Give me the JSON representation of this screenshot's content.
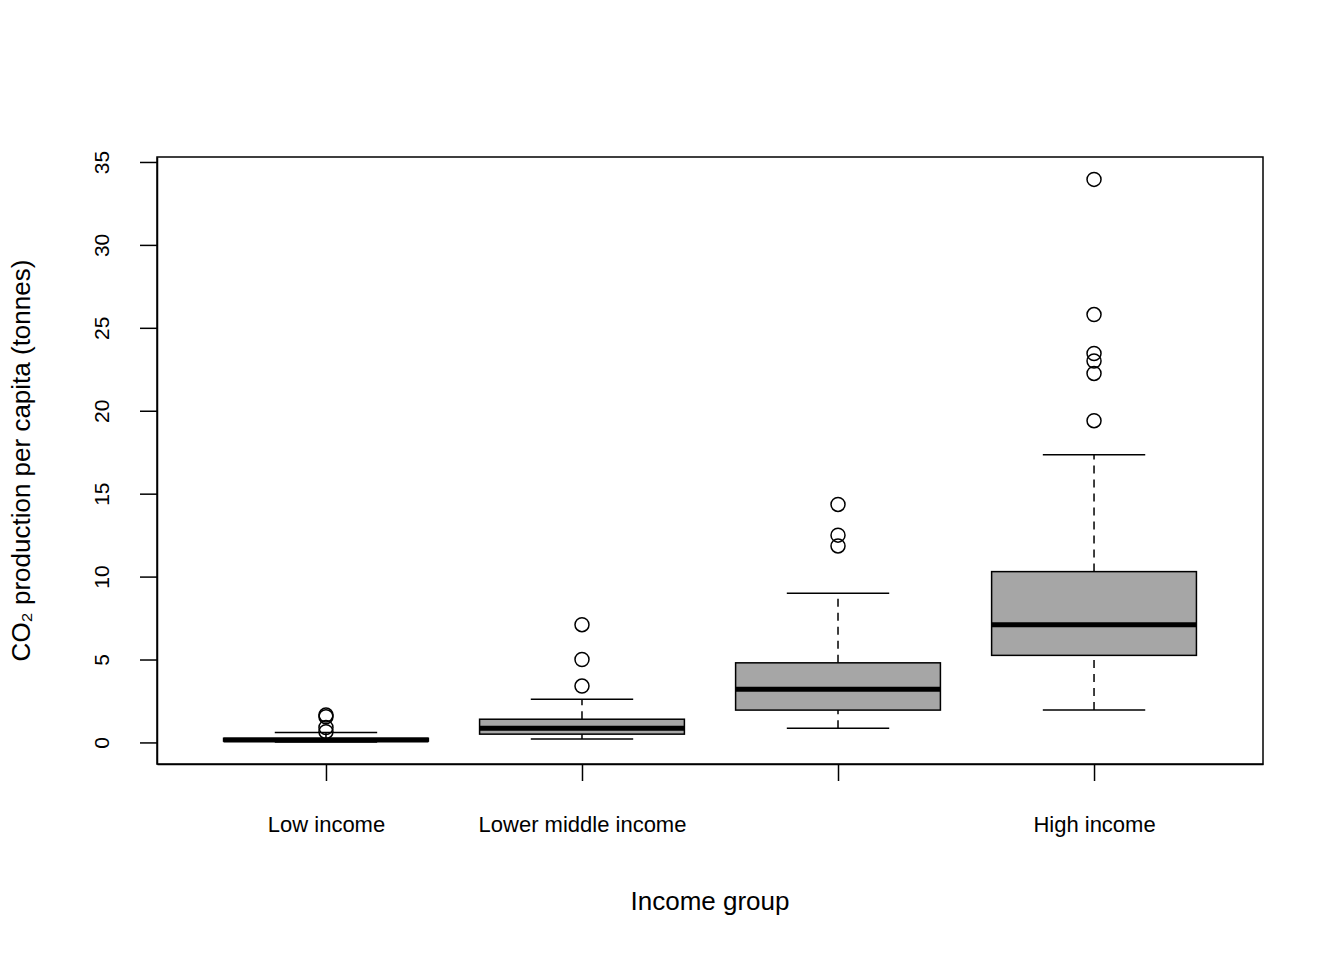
{
  "chart_data": {
    "type": "box",
    "x_label": "Income group",
    "y_label": "CO₂ production per capita (tonnes)",
    "categories": [
      "Low income",
      "Lower middle income",
      null,
      "High income"
    ],
    "boxes": [
      {
        "whisker_low": 0.03,
        "q1": 0.08,
        "median": 0.15,
        "q3": 0.25,
        "whisker_high": 0.6,
        "outliers": [
          1.65,
          1.55,
          0.9,
          0.65
        ]
      },
      {
        "whisker_low": 0.2,
        "q1": 0.5,
        "median": 0.85,
        "q3": 1.4,
        "whisker_high": 2.6,
        "outliers": [
          3.4,
          5.0,
          7.1
        ]
      },
      {
        "whisker_low": 0.85,
        "q1": 1.95,
        "median": 3.2,
        "q3": 4.8,
        "whisker_high": 9.0,
        "outliers": [
          11.85,
          12.5,
          14.35
        ]
      },
      {
        "whisker_low": 1.95,
        "q1": 5.25,
        "median": 7.1,
        "q3": 10.3,
        "whisker_high": 17.35,
        "outliers": [
          19.4,
          22.25,
          23.0,
          23.45,
          25.8,
          33.95
        ]
      }
    ],
    "color": "#a6a6a6",
    "ylim": [
      -1.3,
      35.3
    ],
    "yticks": [
      0,
      5,
      10,
      15,
      20,
      25,
      30,
      35
    ]
  }
}
